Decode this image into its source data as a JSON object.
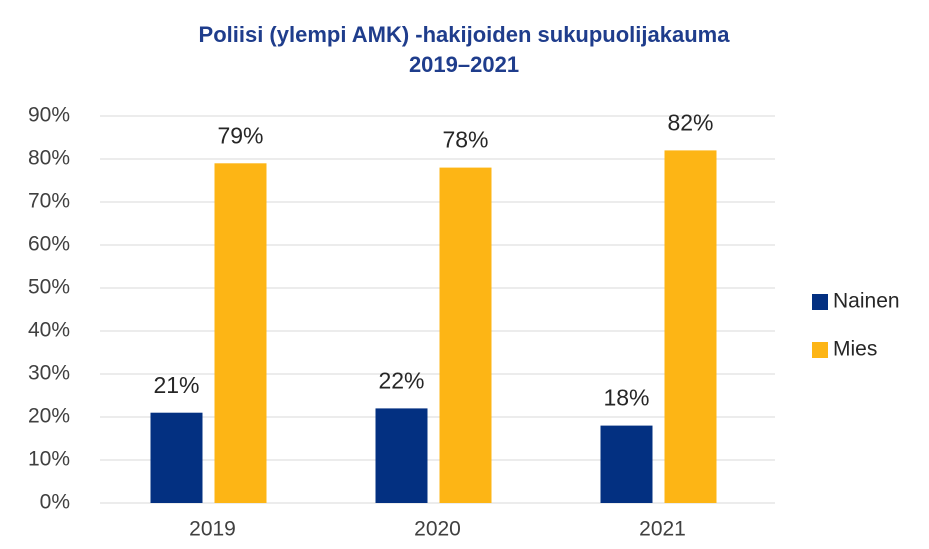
{
  "chart_data": {
    "type": "bar",
    "title": [
      "Poliisi (ylempi AMK) -hakijoiden sukupuolijakauma",
      "2019–2021"
    ],
    "categories": [
      "2019",
      "2020",
      "2021"
    ],
    "series": [
      {
        "name": "Nainen",
        "color": "#033081",
        "values": [
          21,
          22,
          18
        ],
        "value_labels": [
          "21%",
          "22%",
          "18%"
        ]
      },
      {
        "name": "Mies",
        "color": "#fdb515",
        "values": [
          79,
          78,
          82
        ],
        "value_labels": [
          "79%",
          "78%",
          "82%"
        ]
      }
    ],
    "ylim": [
      0,
      90
    ],
    "yticks": [
      {
        "value": 0,
        "label": "0%"
      },
      {
        "value": 10,
        "label": "10%"
      },
      {
        "value": 20,
        "label": "20%"
      },
      {
        "value": 30,
        "label": "30%"
      },
      {
        "value": 40,
        "label": "40%"
      },
      {
        "value": 50,
        "label": "50%"
      },
      {
        "value": 60,
        "label": "60%"
      },
      {
        "value": 70,
        "label": "70%"
      },
      {
        "value": 80,
        "label": "80%"
      },
      {
        "value": 90,
        "label": "90%"
      }
    ],
    "grid": true,
    "legend": "right"
  }
}
